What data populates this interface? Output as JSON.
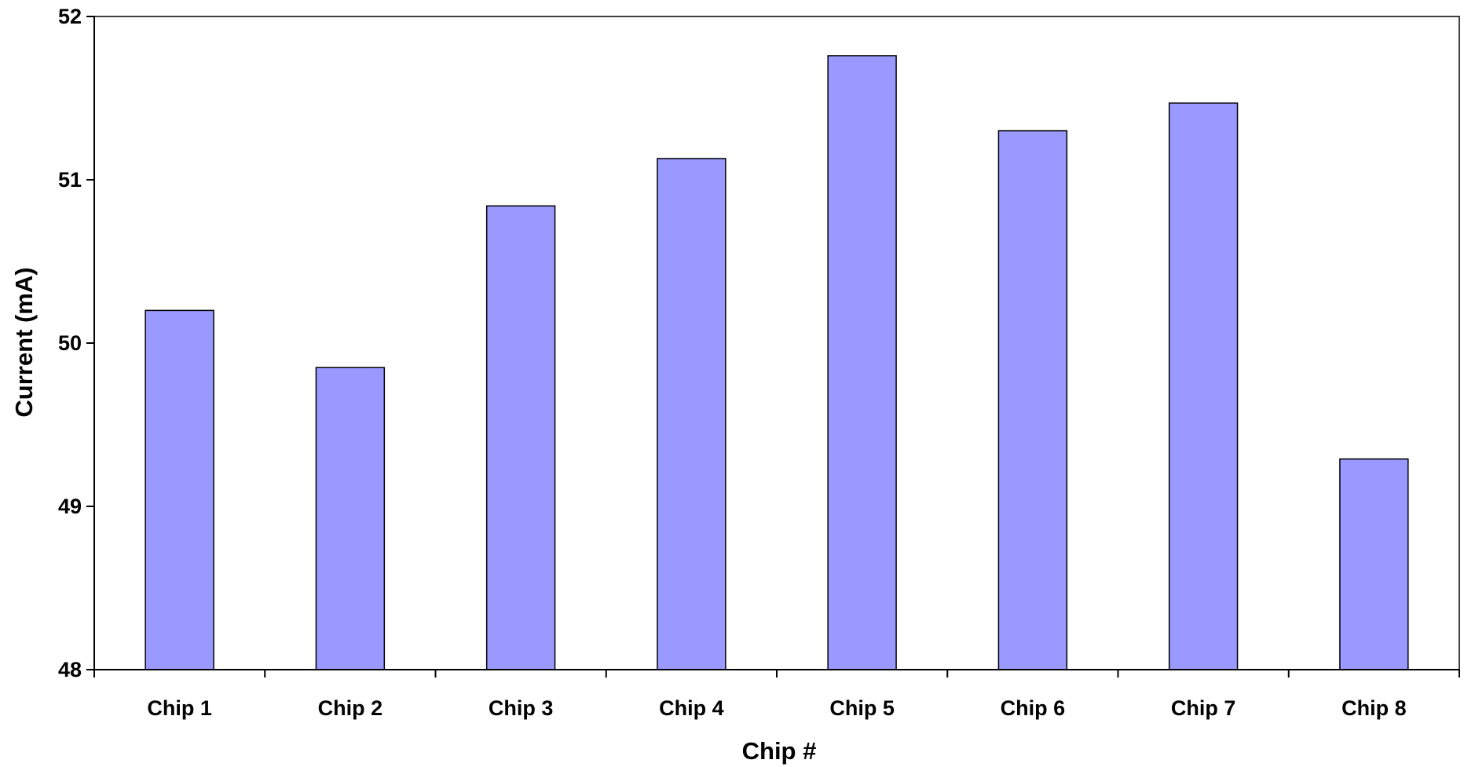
{
  "chart_data": {
    "type": "bar",
    "title": "",
    "xlabel": "Chip #",
    "ylabel": "Current (mA)",
    "categories": [
      "Chip 1",
      "Chip 2",
      "Chip 3",
      "Chip 4",
      "Chip 5",
      "Chip 6",
      "Chip 7",
      "Chip 8"
    ],
    "values": [
      50.2,
      49.85,
      50.84,
      51.13,
      51.76,
      51.3,
      51.47,
      49.29
    ],
    "ylim": [
      48,
      52
    ],
    "yticks": [
      48,
      49,
      50,
      51,
      52
    ],
    "grid": false,
    "legend": "none",
    "colors": {
      "bar_fill": "#9999ff",
      "bar_stroke": "#000000",
      "axis": "#000000",
      "background": "#ffffff"
    }
  }
}
